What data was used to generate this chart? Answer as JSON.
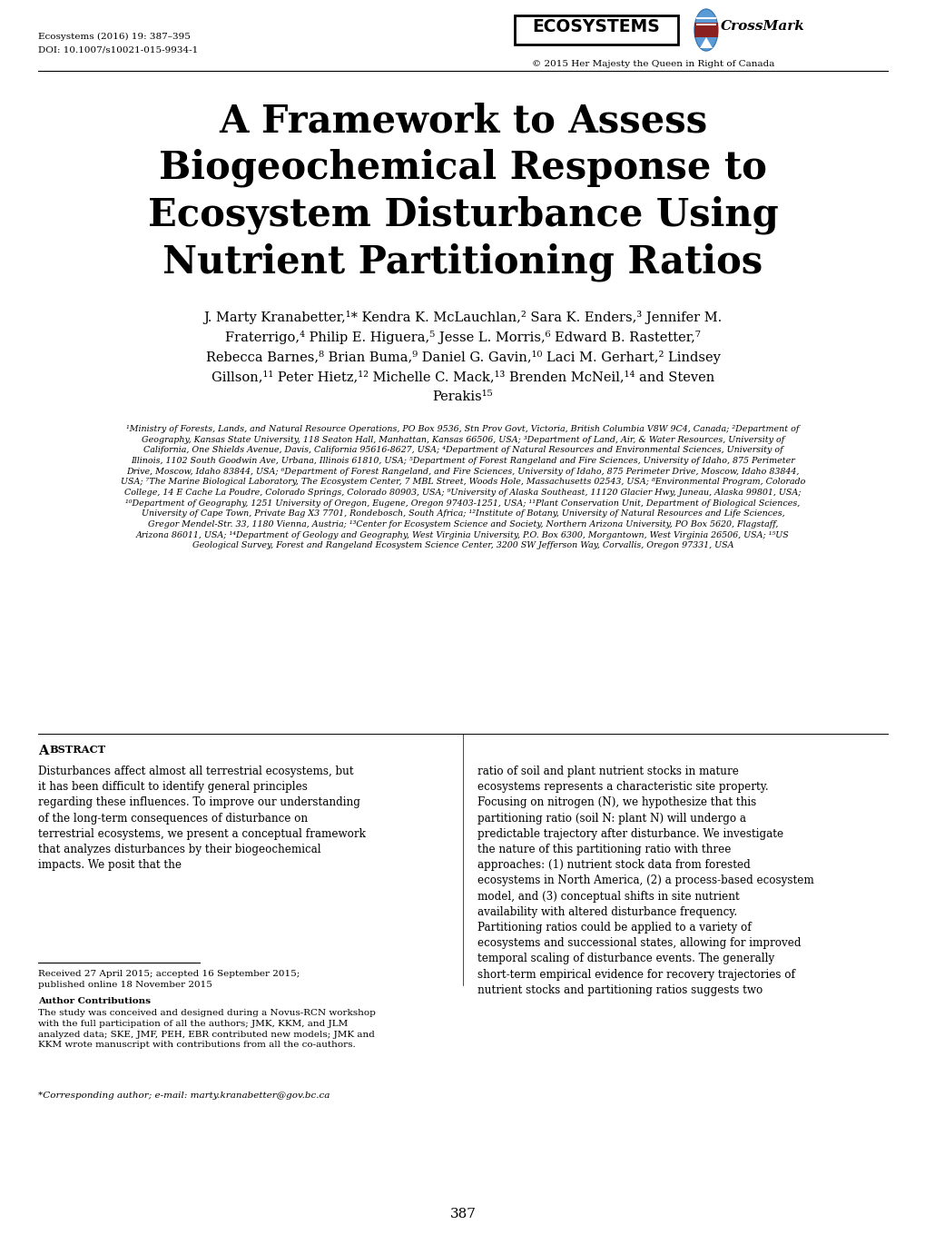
{
  "background_color": "#ffffff",
  "header_left_line1": "Ecosystems (2016) 19: 387–395",
  "header_left_line2": "DOI: 10.1007/s10021-015-9934-1",
  "header_right_copyright": "© 2015 Her Majesty the Queen in Right of Canada",
  "header_right_crossmark": "CrossMark",
  "title_lines": [
    "A Framework to Assess",
    "Biogeochemical Response to",
    "Ecosystem Disturbance Using",
    "Nutrient Partitioning Ratios"
  ],
  "authors_lines": [
    "J. Marty Kranabetter,¹* Kendra K. McLauchlan,² Sara K. Enders,³ Jennifer M.",
    "Fraterrigo,⁴ Philip E. Higuera,⁵ Jesse L. Morris,⁶ Edward B. Rastetter,⁷",
    "Rebecca Barnes,⁸ Brian Buma,⁹ Daniel G. Gavin,¹⁰ Laci M. Gerhart,² Lindsey",
    "Gillson,¹¹ Peter Hietz,¹² Michelle C. Mack,¹³ Brenden McNeil,¹⁴ and Steven",
    "Perakis¹⁵"
  ],
  "affiliations": "¹Ministry of Forests, Lands, and Natural Resource Operations, PO Box 9536, Stn Prov Govt, Victoria, British Columbia V8W 9C4, Canada; ²Department of Geography, Kansas State University, 118 Seaton Hall, Manhattan, Kansas 66506, USA; ³Department of Land, Air, & Water Resources, University of California, One Shields Avenue, Davis, California 95616-8627, USA; ⁴Department of Natural Resources and Environmental Sciences, University of Illinois, 1102 South Goodwin Ave, Urbana, Illinois 61810, USA; ⁵Department of Forest Rangeland and Fire Sciences, University of Idaho, 875 Perimeter Drive, Moscow, Idaho 83844, USA; ⁶Department of Forest Rangeland, and Fire Sciences, University of Idaho, 875 Perimeter Drive, Moscow, Idaho 83844, USA; ⁷The Marine Biological Laboratory, The Ecosystem Center, 7 MBL Street, Woods Hole, Massachusetts 02543, USA; ⁸Environmental Program, Colorado College, 14 E Cache La Poudre, Colorado Springs, Colorado 80903, USA; ⁹University of Alaska Southeast, 11120 Glacier Hwy, Juneau, Alaska 99801, USA; ¹⁰Department of Geography, 1251 University of Oregon, Eugene, Oregon 97403-1251, USA; ¹¹Plant Conservation Unit, Department of Biological Sciences, University of Cape Town, Private Bag X3 7701, Rondebosch, South Africa; ¹²Institute of Botany, University of Natural Resources and Life Sciences, Gregor Mendel-Str. 33, 1180 Vienna, Austria; ¹³Center for Ecosystem Science and Society, Northern Arizona University, PO Box 5620, Flagstaff, Arizona 86011, USA; ¹⁴Department of Geology and Geography, West Virginia University, P.O. Box 6300, Morgantown, West Virginia 26506, USA; ¹⁵US Geological Survey, Forest and Rangeland Ecosystem Science Center, 3200 SW Jefferson Way, Corvallis, Oregon 97331, USA",
  "abstract_col1": "Disturbances affect almost all terrestrial ecosystems, but it has been difficult to identify general principles regarding these influences. To improve our understanding of the long-term consequences of disturbance on terrestrial ecosystems, we present a conceptual framework that analyzes disturbances by their biogeochemical impacts. We posit that the",
  "abstract_col2": "ratio of soil and plant nutrient stocks in mature ecosystems represents a characteristic site property. Focusing on nitrogen (N), we hypothesize that this partitioning ratio (soil N: plant N) will undergo a predictable trajectory after disturbance. We investigate the nature of this partitioning ratio with three approaches: (1) nutrient stock data from forested ecosystems in North America, (2) a process-based ecosystem model, and (3) conceptual shifts in site nutrient availability with altered disturbance frequency. Partitioning ratios could be applied to a variety of ecosystems and successional states, allowing for improved temporal scaling of disturbance events. The generally short-term empirical evidence for recovery trajectories of nutrient stocks and partitioning ratios suggests two",
  "footnote_received": "Received 27 April 2015; accepted 16 September 2015;\npublished online 18 November 2015",
  "footnote_author_contrib_heading": "Author Contributions",
  "footnote_author_contrib_text": "The study was conceived and designed during a Novus-RCN workshop with the full participation of all the authors; JMK, KKM, and JLM analyzed data; SKE, JMF, PEH, EBR contributed new models; JMK and KKM wrote manuscript with contributions from all the co-authors.",
  "footnote_corresponding": "*Corresponding author; e-mail: marty.kranabetter@gov.bc.ca",
  "page_number": "387"
}
